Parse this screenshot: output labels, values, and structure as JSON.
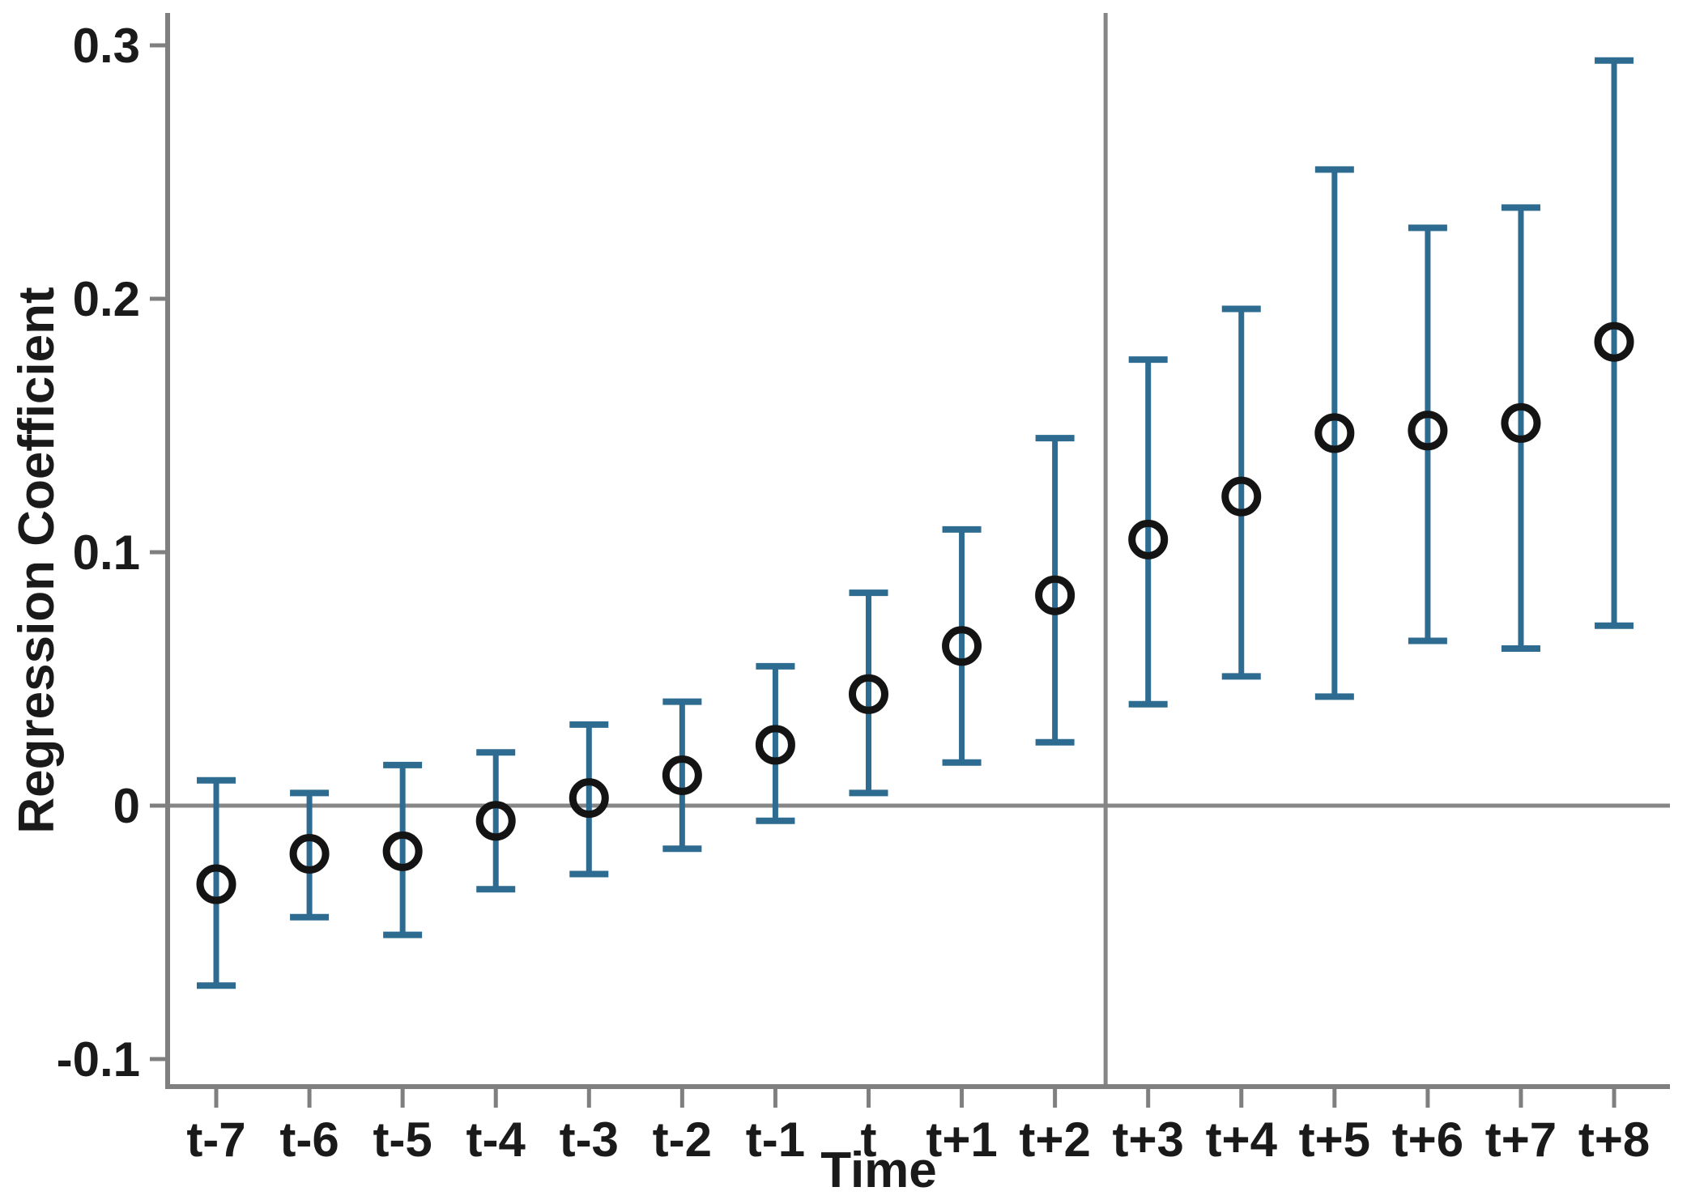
{
  "chart_data": {
    "type": "scatter",
    "subtype": "error-bar-plot",
    "title": "",
    "xlabel": "Time",
    "ylabel": "Regression Coefficient",
    "categories": [
      "t-7",
      "t-6",
      "t-5",
      "t-4",
      "t-3",
      "t-2",
      "t-1",
      "t",
      "t+1",
      "t+2",
      "t+3",
      "t+4",
      "t+5",
      "t+6",
      "t+7",
      "t+8"
    ],
    "series": [
      {
        "name": "regression-coefficient",
        "center": [
          -0.031,
          -0.019,
          -0.018,
          -0.006,
          0.003,
          0.012,
          0.024,
          0.044,
          0.063,
          0.083,
          0.105,
          0.122,
          0.147,
          0.148,
          0.151,
          0.183
        ],
        "ci_low": [
          -0.071,
          -0.044,
          -0.051,
          -0.033,
          -0.027,
          -0.017,
          -0.006,
          0.005,
          0.017,
          0.025,
          0.04,
          0.051,
          0.043,
          0.065,
          0.062,
          0.071
        ],
        "ci_high": [
          0.01,
          0.005,
          0.016,
          0.021,
          0.032,
          0.041,
          0.055,
          0.084,
          0.109,
          0.145,
          0.176,
          0.196,
          0.251,
          0.228,
          0.236,
          0.294
        ]
      }
    ],
    "yticks": [
      0.3,
      0.2,
      0.1,
      0,
      -0.1
    ],
    "ytick_labels": [
      "0.3",
      "0.2",
      "0.1",
      "0",
      "-0.1"
    ],
    "ylim": [
      -0.12,
      0.315
    ],
    "grid": false,
    "legend": "none",
    "reference_lines": {
      "horizontal_at_y": 0,
      "vertical_between_categories": [
        "t+2",
        "t+3"
      ]
    },
    "colors": {
      "error_bar": "#2e6b91",
      "marker_stroke": "#141414",
      "axis": "#7f7f7f",
      "reference_line": "#868686",
      "text": "#1a1a1a",
      "background": "#ffffff"
    }
  }
}
